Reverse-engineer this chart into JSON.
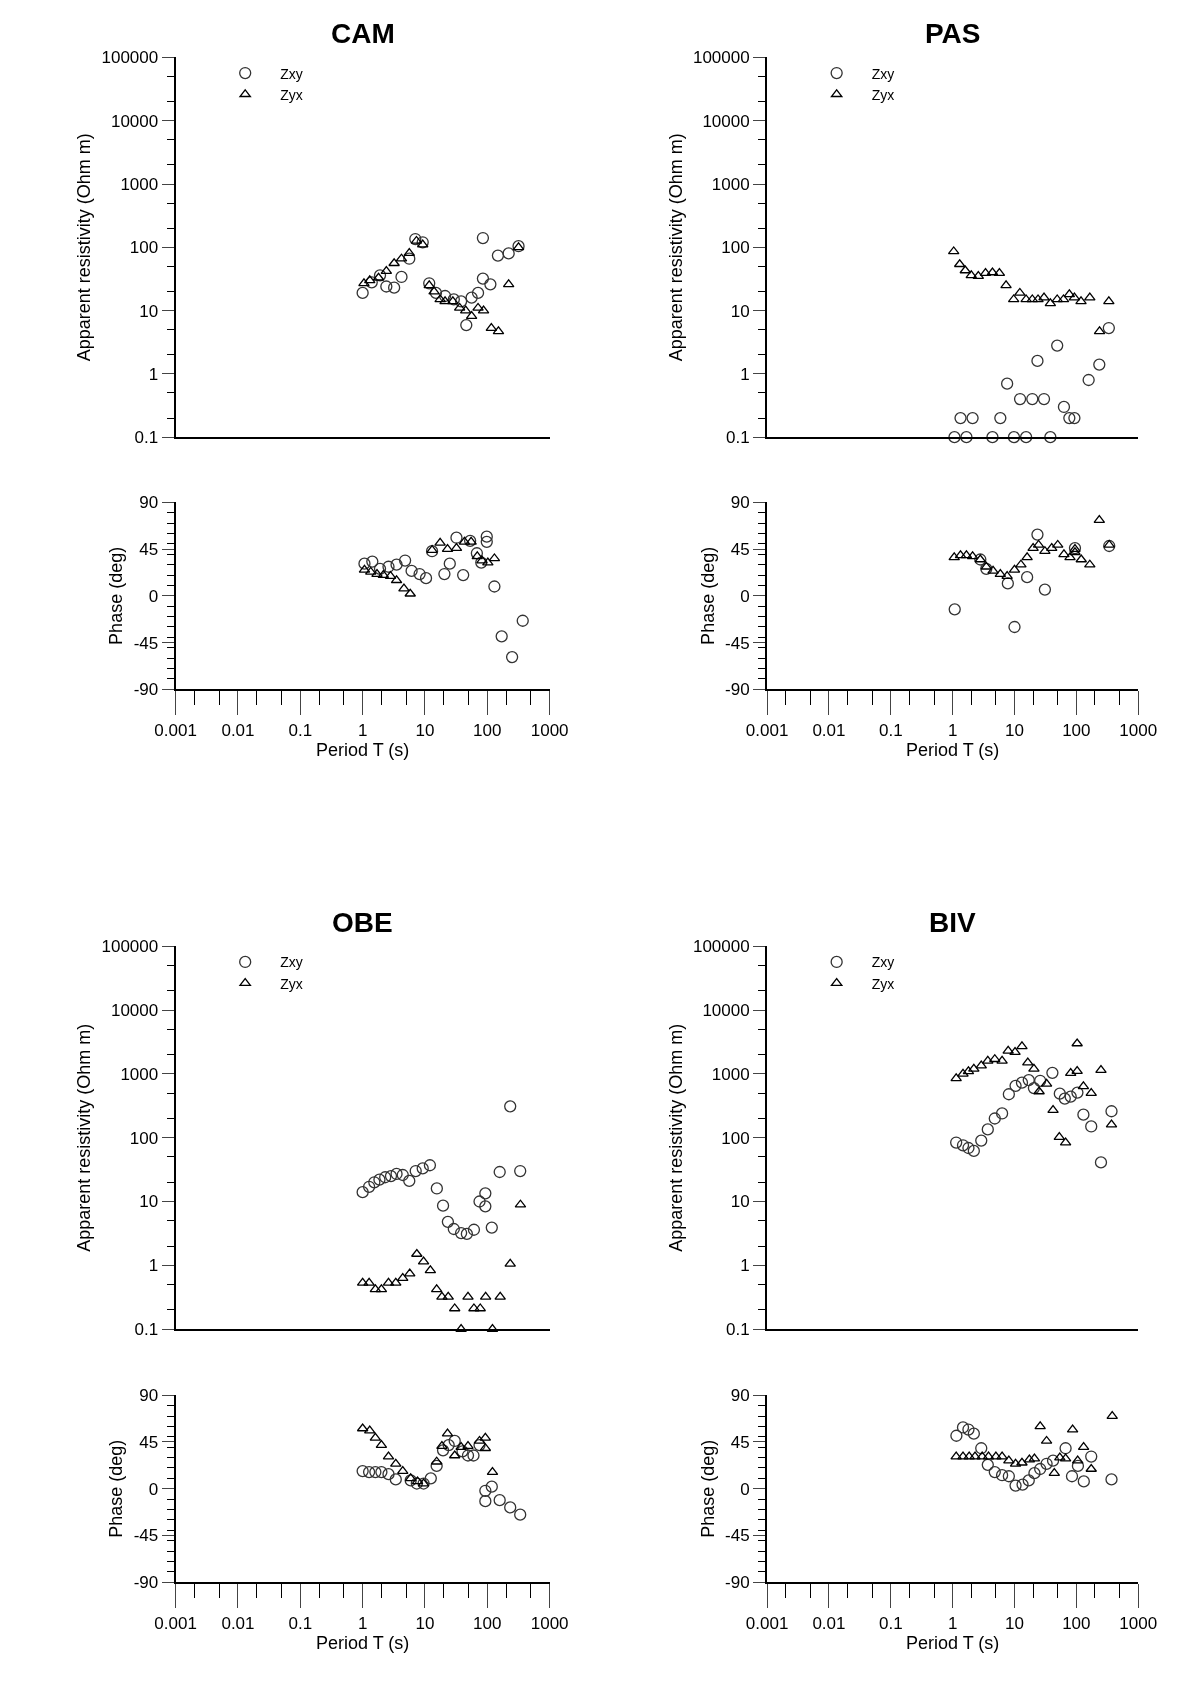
{
  "chart_data": [
    {
      "type": "scatter",
      "title": "CAM",
      "ylabel": "Apparent resistivity (Ohm m)",
      "log": "xy",
      "xlim": [
        0.001,
        1000
      ],
      "ylim": [
        0.1,
        100000
      ],
      "yticks": [
        0.1,
        1,
        10,
        100,
        1000,
        10000,
        100000
      ],
      "tick_labels": "y",
      "legend": "top left",
      "series": [
        {
          "name": "Zxy",
          "color": "#333333",
          "marker": "circle",
          "x": [
            1,
            1.4,
            1.9,
            2.4,
            3.2,
            4.2,
            5.6,
            7,
            9.2,
            11.7,
            15,
            21,
            29,
            38,
            46,
            56,
            71,
            85,
            85,
            112,
            148,
            220,
            317
          ],
          "values": [
            19,
            28,
            36,
            24,
            23,
            34,
            66,
            135,
            120,
            27,
            19,
            17,
            15,
            14,
            5.9,
            16,
            19,
            32,
            140,
            26,
            74,
            80,
            104
          ]
        },
        {
          "name": "Zyx",
          "color": "#000000",
          "marker": "triangle",
          "x": [
            1.05,
            1.3,
            1.8,
            2.4,
            3.2,
            4.2,
            5.6,
            7.3,
            9.2,
            11.7,
            14,
            17.5,
            21,
            28,
            36,
            45,
            56,
            71,
            87,
            116,
            151,
            220,
            317
          ],
          "values": [
            27,
            30,
            33,
            42,
            56,
            66,
            81,
            126,
            110,
            25,
            20,
            15,
            14,
            14,
            11,
            10,
            8.2,
            11,
            10,
            5.3,
            4.7,
            26,
            100
          ]
        }
      ]
    },
    {
      "type": "scatter",
      "xlabel": "Period T (s)",
      "ylabel": "Phase (deg)",
      "log": "x",
      "xlim": [
        0.001,
        1000
      ],
      "ylim": [
        -90,
        90
      ],
      "xticks": [
        0.001,
        0.01,
        0.1,
        1,
        10,
        100,
        1000
      ],
      "yticks": [
        -90,
        -45,
        0,
        45,
        90
      ],
      "series": [
        {
          "color": "#333333",
          "marker": "circle",
          "x": [
            1.07,
            1.43,
            1.9,
            2.6,
            3.5,
            4.8,
            6.1,
            8.2,
            10.4,
            13,
            20.5,
            25,
            32,
            41,
            53,
            68,
            80,
            98,
            98,
            130,
            170,
            250,
            370
          ],
          "values": [
            31,
            33,
            26,
            28,
            30,
            34,
            24,
            21,
            17,
            43,
            21,
            31,
            56,
            20,
            53,
            41,
            32,
            57,
            52,
            9,
            -39,
            -59,
            -24
          ]
        },
        {
          "color": "#000000",
          "marker": "triangle",
          "x": [
            1.07,
            1.35,
            1.7,
            2.15,
            2.8,
            3.5,
            4.6,
            5.8,
            13,
            17.5,
            23,
            32,
            43,
            55,
            69,
            82,
            102,
            130
          ],
          "values": [
            25,
            23,
            21,
            20,
            19,
            15,
            7,
            2,
            44,
            51,
            45,
            46,
            52,
            52,
            38,
            34,
            32,
            36
          ]
        }
      ]
    },
    {
      "type": "scatter",
      "title": "PAS",
      "ylabel": "Apparent resistivity (Ohm m)",
      "log": "xy",
      "xlim": [
        0.001,
        1000
      ],
      "ylim": [
        0.1,
        100000
      ],
      "yticks": [
        0.1,
        1,
        10,
        100,
        1000,
        10000,
        100000
      ],
      "tick_labels": "y",
      "legend": "top left",
      "series": [
        {
          "name": "Zxy",
          "color": "#333333",
          "marker": "circle",
          "x": [
            1.07,
            1.34,
            1.67,
            2.1,
            4.4,
            5.9,
            7.6,
            9.8,
            12.3,
            15.4,
            19.4,
            23.5,
            30,
            38,
            49,
            63,
            77,
            93,
            158,
            235,
            335
          ],
          "values": [
            0.1,
            0.2,
            0.1,
            0.2,
            0.1,
            0.2,
            0.7,
            0.1,
            0.4,
            0.1,
            0.4,
            1.6,
            0.4,
            0.1,
            2.8,
            0.3,
            0.2,
            0.2,
            0.8,
            1.4,
            5.3
          ]
        },
        {
          "name": "Zyx",
          "color": "#000000",
          "marker": "triangle",
          "x": [
            1.04,
            1.3,
            1.6,
            2,
            2.6,
            3.4,
            4.4,
            5.7,
            7.3,
            9.7,
            12.2,
            15.4,
            19.4,
            24,
            30,
            38,
            49,
            62,
            77,
            93,
            119,
            165,
            237,
            335
          ],
          "values": [
            86,
            54,
            43,
            36,
            35,
            39,
            40,
            39,
            25,
            15,
            19,
            15,
            15,
            15,
            16,
            13,
            15,
            15,
            18,
            16,
            14,
            16,
            4.7,
            14
          ]
        }
      ]
    },
    {
      "type": "scatter",
      "xlabel": "Period T (s)",
      "ylabel": "Phase (deg)",
      "log": "x",
      "xlim": [
        0.001,
        1000
      ],
      "ylim": [
        -90,
        90
      ],
      "xticks": [
        0.001,
        0.01,
        0.1,
        1,
        10,
        100,
        1000
      ],
      "yticks": [
        -90,
        -45,
        0,
        45,
        90
      ],
      "series": [
        {
          "color": "#333333",
          "marker": "circle",
          "x": [
            1.08,
            2.8,
            3.5,
            7.8,
            10,
            16,
            23.5,
            31,
            95,
            340
          ],
          "values": [
            -13,
            35,
            26,
            12,
            -30,
            18,
            59,
            6,
            46,
            48
          ]
        },
        {
          "color": "#000000",
          "marker": "triangle",
          "x": [
            1.06,
            1.34,
            1.67,
            2.1,
            2.8,
            3.5,
            4.5,
            5.9,
            7.6,
            10,
            12.7,
            16,
            20,
            24.5,
            31,
            40,
            50,
            63,
            79,
            95,
            95,
            120,
            165,
            235,
            340
          ],
          "values": [
            37,
            39,
            39,
            38,
            35,
            28,
            24,
            21,
            19,
            25,
            30,
            37,
            46,
            49,
            43,
            46,
            49,
            40,
            37,
            45,
            42,
            35,
            30,
            73,
            49
          ]
        }
      ]
    },
    {
      "type": "scatter",
      "title": "OBE",
      "ylabel": "Apparent resistivity (Ohm m)",
      "log": "xy",
      "xlim": [
        0.001,
        1000
      ],
      "ylim": [
        0.1,
        100000
      ],
      "yticks": [
        0.1,
        1,
        10,
        100,
        1000,
        10000,
        100000
      ],
      "tick_labels": "y",
      "legend": "top left",
      "series": [
        {
          "name": "Zxy",
          "color": "#333333",
          "marker": "circle",
          "x": [
            1,
            1.27,
            1.54,
            1.86,
            2.3,
            2.85,
            3.5,
            4.4,
            5.6,
            7.1,
            9.2,
            12,
            15.5,
            19.5,
            23.3,
            29,
            38,
            47,
            61,
            75,
            93,
            93,
            118,
            158,
            233,
            337
          ],
          "values": [
            14,
            17,
            20,
            22,
            24,
            25,
            27,
            26,
            21,
            30,
            33,
            37,
            16,
            8.6,
            4.8,
            3.7,
            3.2,
            3.1,
            3.6,
            10,
            13.4,
            8.4,
            3.9,
            29,
            310,
            30
          ]
        },
        {
          "name": "Zyx",
          "color": "#000000",
          "marker": "triangle",
          "x": [
            1,
            1.27,
            1.6,
            2,
            2.6,
            3.4,
            4.4,
            5.7,
            7.4,
            9.5,
            12.2,
            15.4,
            18.7,
            23.6,
            30,
            38,
            49,
            61,
            77,
            94,
            121,
            161,
            233,
            340
          ],
          "values": [
            0.53,
            0.53,
            0.42,
            0.42,
            0.53,
            0.53,
            0.63,
            0.74,
            1.5,
            1.14,
            0.83,
            0.42,
            0.32,
            0.32,
            0.21,
            0.1,
            0.32,
            0.21,
            0.21,
            0.32,
            0.1,
            0.32,
            1.05,
            8.9
          ]
        }
      ]
    },
    {
      "type": "scatter",
      "xlabel": "Period T (s)",
      "ylabel": "Phase (deg)",
      "log": "x",
      "xlim": [
        0.001,
        1000
      ],
      "ylim": [
        -90,
        90
      ],
      "xticks": [
        0.001,
        0.01,
        0.1,
        1,
        10,
        100,
        1000
      ],
      "yticks": [
        -90,
        -45,
        0,
        45,
        90
      ],
      "series": [
        {
          "color": "#333333",
          "marker": "circle",
          "x": [
            1,
            1.27,
            1.6,
            2,
            2.6,
            3.4,
            5.9,
            7.4,
            9.5,
            12.4,
            15.4,
            19.5,
            24,
            30,
            40,
            49,
            60,
            75,
            93,
            93,
            118,
            158,
            233,
            337
          ],
          "values": [
            17,
            16,
            16,
            16,
            14,
            9,
            8,
            5,
            5,
            10,
            22,
            37,
            42,
            46,
            36,
            32,
            32,
            42,
            -2,
            -12,
            2,
            -11,
            -18,
            -25
          ]
        },
        {
          "color": "#000000",
          "marker": "triangle",
          "x": [
            1,
            1.3,
            1.6,
            2,
            2.6,
            3.4,
            4.4,
            5.9,
            7.6,
            9.5,
            15.4,
            18.7,
            23,
            30,
            38,
            49,
            75,
            93,
            93,
            121
          ],
          "values": [
            58,
            56,
            49,
            42,
            31,
            24,
            17,
            10,
            7,
            5,
            26,
            41,
            53,
            32,
            40,
            41,
            46,
            49,
            39,
            16
          ]
        }
      ]
    },
    {
      "type": "scatter",
      "title": "BIV",
      "ylabel": "Apparent resistivity (Ohm m)",
      "log": "xy",
      "xlim": [
        0.001,
        1000
      ],
      "ylim": [
        0.1,
        100000
      ],
      "yticks": [
        0.1,
        1,
        10,
        100,
        1000,
        10000,
        100000
      ],
      "tick_labels": "y",
      "legend": "top left",
      "series": [
        {
          "name": "Zxy",
          "color": "#333333",
          "marker": "circle",
          "x": [
            1.14,
            1.47,
            1.8,
            2.2,
            2.9,
            3.7,
            4.8,
            6.3,
            8.1,
            10.4,
            13.2,
            17,
            20.6,
            26,
            41,
            54,
            65,
            81,
            104,
            130,
            174,
            250,
            370
          ],
          "values": [
            84,
            76,
            69,
            62,
            90,
            135,
            200,
            240,
            480,
            650,
            730,
            800,
            600,
            780,
            1040,
            490,
            410,
            440,
            510,
            230,
            150,
            41,
            260
          ]
        },
        {
          "name": "Zyx",
          "color": "#000000",
          "marker": "triangle",
          "x": [
            1.14,
            1.47,
            1.8,
            2.2,
            2.9,
            3.7,
            4.8,
            6.3,
            7.9,
            10.2,
            13.2,
            16.4,
            20.6,
            25,
            33,
            42,
            53,
            67,
            81,
            103,
            103,
            130,
            174,
            250,
            370
          ],
          "values": [
            850,
            1000,
            1100,
            1200,
            1350,
            1600,
            1700,
            1600,
            2300,
            2200,
            2700,
            1500,
            1200,
            530,
            700,
            270,
            102,
            84,
            1030,
            1110,
            3000,
            640,
            500,
            1150,
            160
          ]
        }
      ]
    },
    {
      "type": "scatter",
      "xlabel": "Period T (s)",
      "ylabel": "Phase (deg)",
      "log": "x",
      "xlim": [
        0.001,
        1000
      ],
      "ylim": [
        -90,
        90
      ],
      "xticks": [
        0.001,
        0.01,
        0.1,
        1,
        10,
        100,
        1000
      ],
      "yticks": [
        -90,
        -45,
        0,
        45,
        90
      ],
      "series": [
        {
          "color": "#333333",
          "marker": "circle",
          "x": [
            1.15,
            1.47,
            1.8,
            2.2,
            2.9,
            3.7,
            4.8,
            6.3,
            8.1,
            10.4,
            13.5,
            17,
            21,
            26,
            33,
            42,
            67,
            85,
            106,
            132,
            174,
            370
          ],
          "values": [
            51,
            59,
            57,
            53,
            39,
            23,
            16,
            13,
            12,
            3,
            4,
            8,
            15,
            19,
            24,
            27,
            39,
            12,
            22,
            7,
            31,
            9
          ]
        },
        {
          "color": "#000000",
          "marker": "triangle",
          "x": [
            1.14,
            1.47,
            1.85,
            2.3,
            3,
            3.8,
            5,
            6.3,
            8.1,
            10.4,
            13.2,
            17.4,
            21,
            26,
            33,
            44,
            54,
            67,
            87,
            105,
            131,
            174,
            380
          ],
          "values": [
            31,
            31,
            31,
            31,
            31,
            31,
            31,
            31,
            27,
            24,
            25,
            28,
            29,
            60,
            46,
            15,
            30,
            29,
            57,
            27,
            40,
            19,
            70
          ]
        }
      ]
    }
  ]
}
